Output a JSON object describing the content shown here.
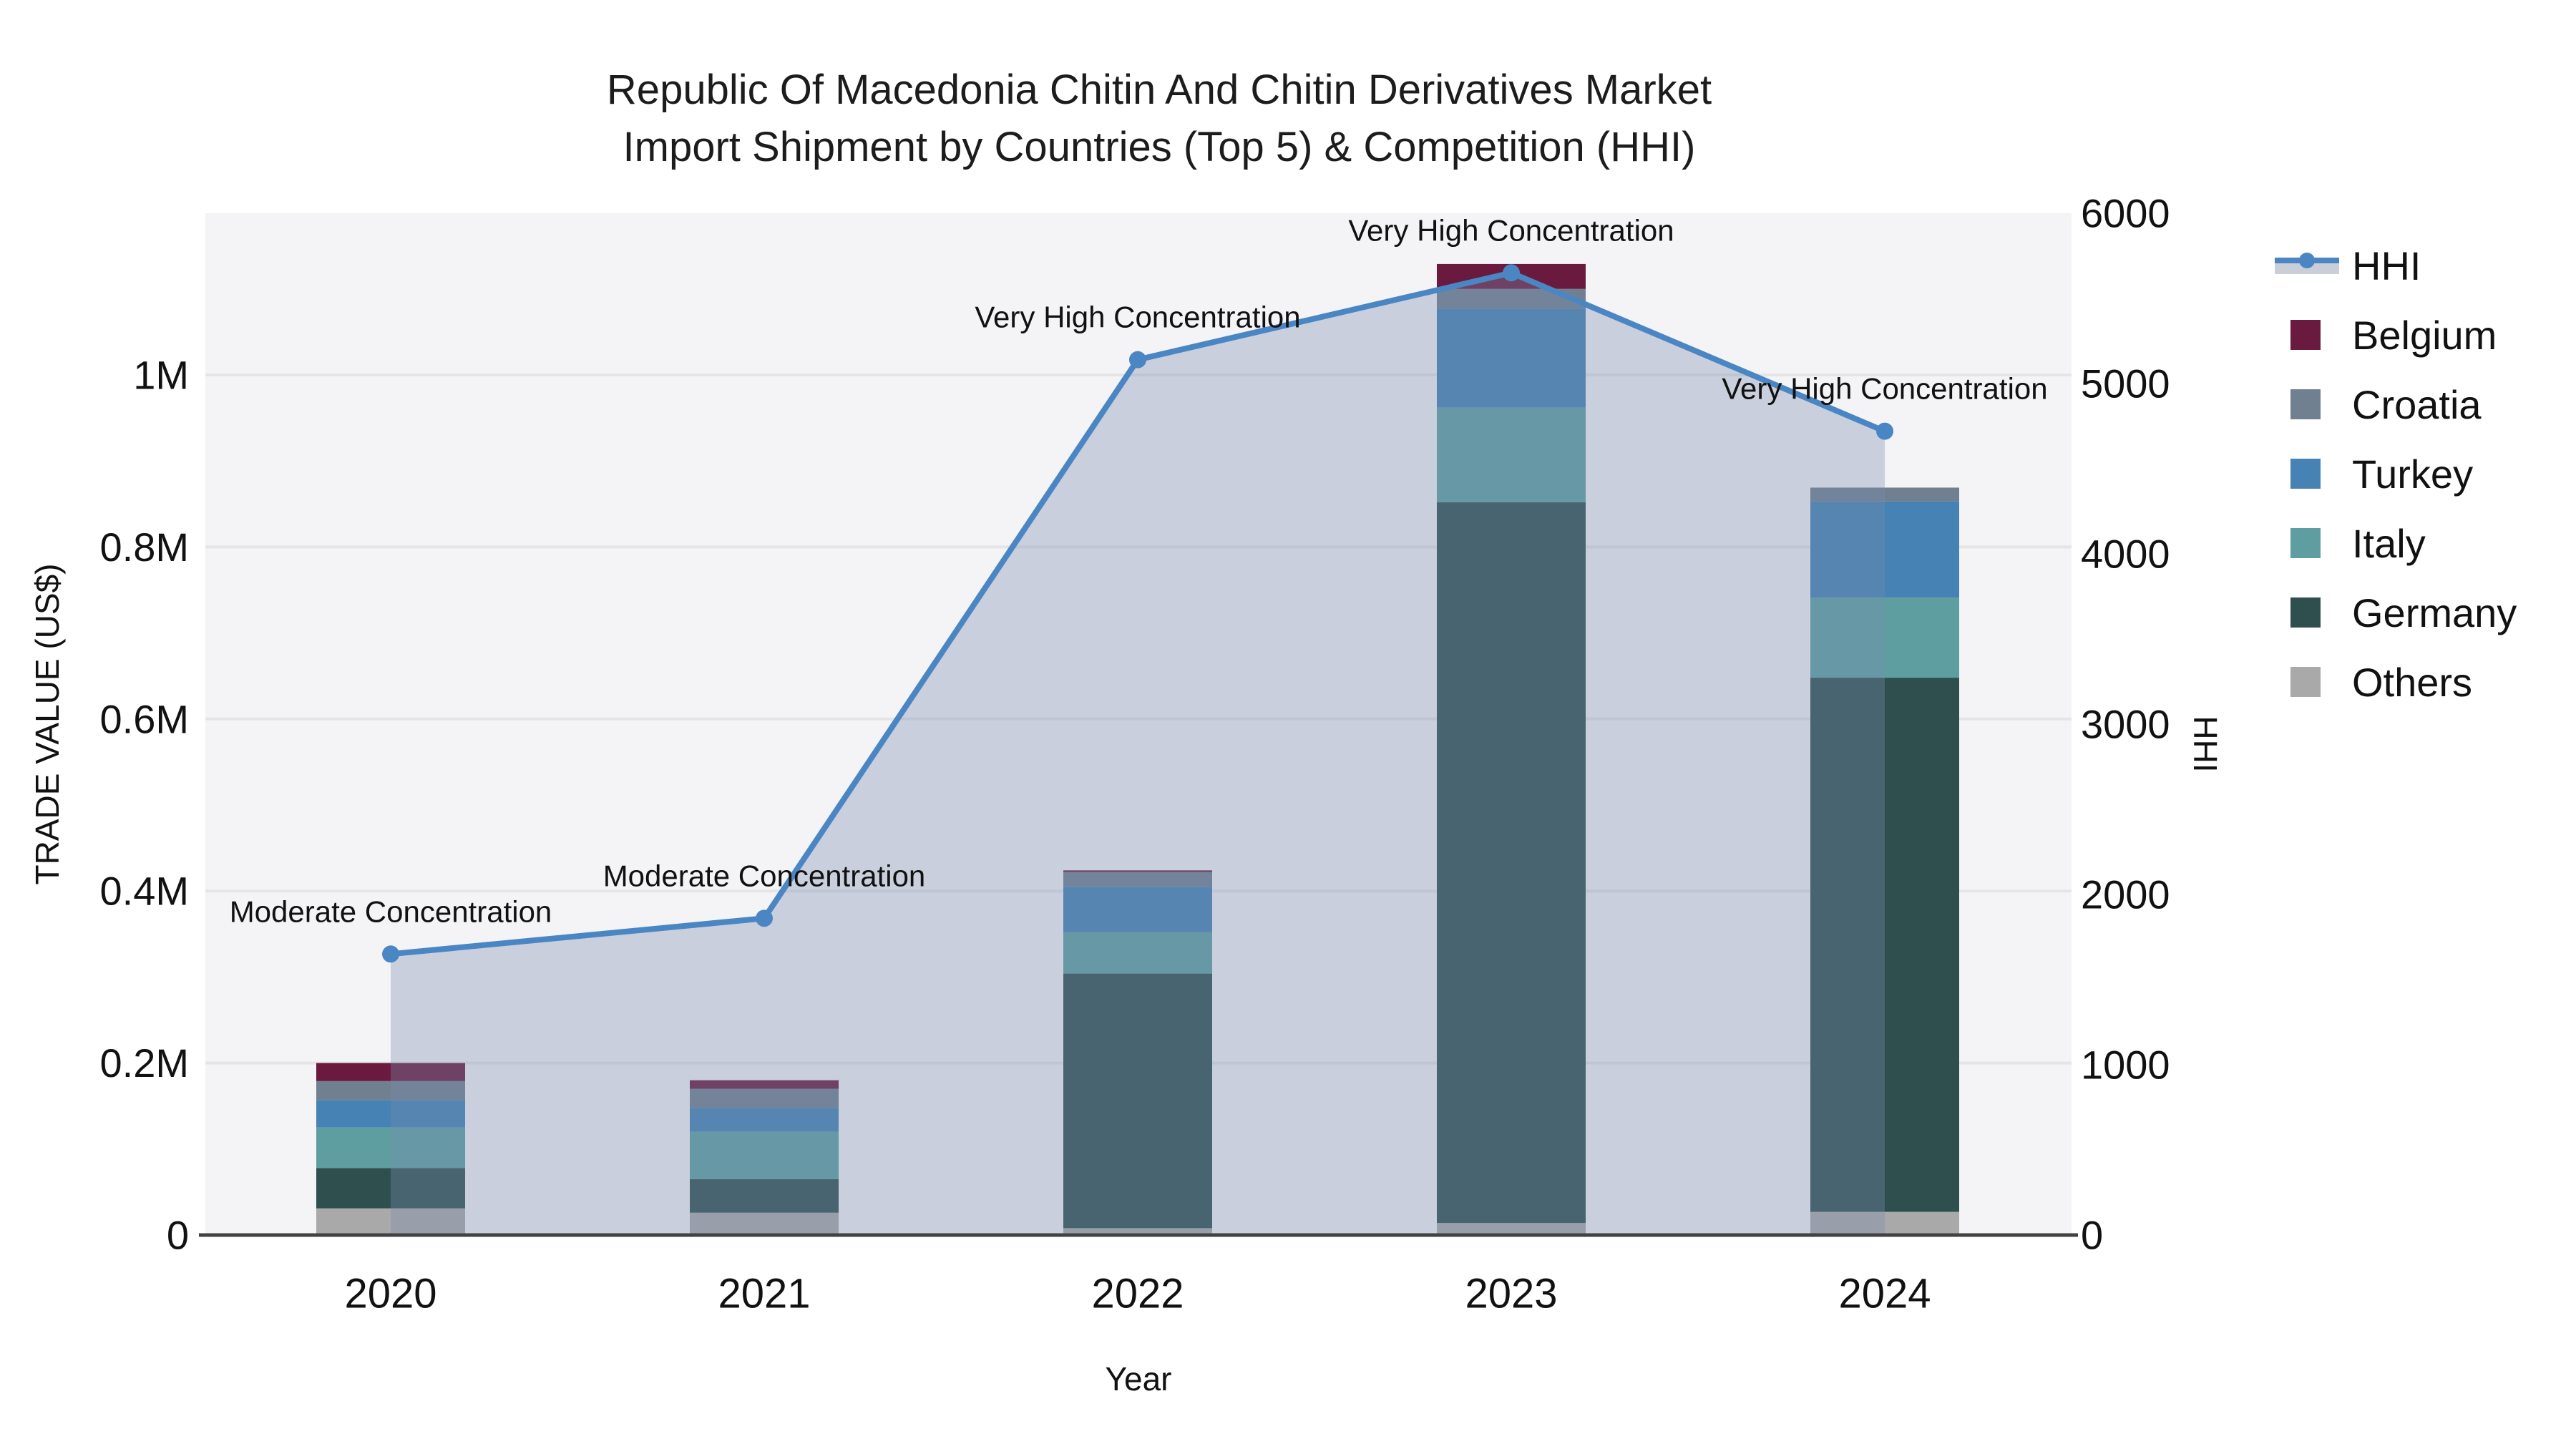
{
  "title": {
    "line1": "Republic Of Macedonia Chitin And Chitin Derivatives Market",
    "line2": "Import Shipment by Countries (Top 5) & Competition (HHI)"
  },
  "axes": {
    "x": {
      "label": "Year",
      "ticks": [
        "2020",
        "2021",
        "2022",
        "2023",
        "2024"
      ]
    },
    "left": {
      "label": "TRADE VALUE (US$)",
      "ticks": [
        {
          "value": 0,
          "label": "0"
        },
        {
          "value": 200000,
          "label": "0.2M"
        },
        {
          "value": 400000,
          "label": "0.4M"
        },
        {
          "value": 600000,
          "label": "0.6M"
        },
        {
          "value": 800000,
          "label": "0.8M"
        },
        {
          "value": 1000000,
          "label": "1M"
        }
      ]
    },
    "right": {
      "label": "HHI",
      "ticks": [
        {
          "value": 0,
          "label": "0"
        },
        {
          "value": 1000,
          "label": "1000"
        },
        {
          "value": 2000,
          "label": "2000"
        },
        {
          "value": 3000,
          "label": "3000"
        },
        {
          "value": 4000,
          "label": "4000"
        },
        {
          "value": 5000,
          "label": "5000"
        },
        {
          "value": 6000,
          "label": "6000"
        }
      ]
    }
  },
  "colors": {
    "plot_bg": "#f4f3f5",
    "gridline": "#e5e5e7",
    "axis_line": "#424242",
    "hhi_line": "#4a86c3",
    "hhi_fill": "rgba(120,140,175,0.35)",
    "hhi_legend_band": "#c9ced8",
    "text": "#111111"
  },
  "chart_data": {
    "type": "bar",
    "stacked": true,
    "title": "Republic Of Macedonia Chitin And Chitin Derivatives Market — Import Shipment by Countries (Top 5) & Competition (HHI)",
    "xlabel": "Year",
    "ylabel": "TRADE VALUE (US$)",
    "ylabel_right": "HHI",
    "ylim_left": [
      0,
      1188000
    ],
    "ylim_right": [
      0,
      6000
    ],
    "grid": true,
    "legend_position": "right",
    "categories": [
      "2020",
      "2021",
      "2022",
      "2023",
      "2024"
    ],
    "series": [
      {
        "name": "Belgium",
        "color": "#6a1a3e",
        "values": [
          21000,
          10000,
          2000,
          29000,
          0
        ]
      },
      {
        "name": "Croatia",
        "color": "#708090",
        "values": [
          22000,
          22000,
          17000,
          23000,
          16000
        ]
      },
      {
        "name": "Turkey",
        "color": "#4682b4",
        "values": [
          32000,
          28000,
          53000,
          115000,
          112000
        ]
      },
      {
        "name": "Italy",
        "color": "#5f9ea0",
        "values": [
          47000,
          55000,
          48000,
          110000,
          93000
        ]
      },
      {
        "name": "Germany",
        "color": "#2f4f4f",
        "values": [
          47000,
          39000,
          296000,
          838000,
          621000
        ]
      },
      {
        "name": "Others",
        "color": "#a9a9a9",
        "values": [
          31000,
          26000,
          8000,
          14000,
          27000
        ]
      }
    ],
    "line_series": {
      "name": "HHI",
      "axis": "right",
      "type": "line+area",
      "color": "#4a86c3",
      "values": [
        1650,
        1860,
        5140,
        5650,
        4720
      ],
      "annotations": [
        "Moderate Concentration",
        "Moderate Concentration",
        "Very High Concentration",
        "Very High Concentration",
        "Very High Concentration"
      ]
    }
  },
  "legend": {
    "entries": [
      "HHI",
      "Belgium",
      "Croatia",
      "Turkey",
      "Italy",
      "Germany",
      "Others"
    ]
  }
}
